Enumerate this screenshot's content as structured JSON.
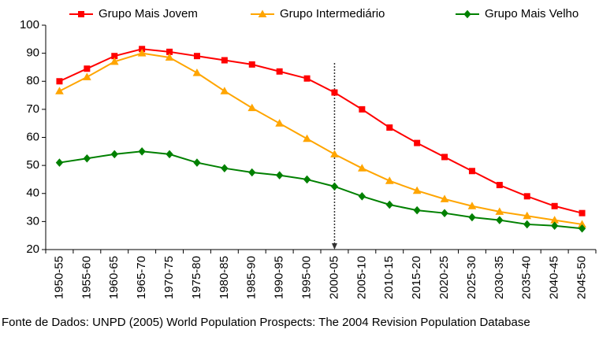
{
  "chart_data": {
    "type": "line",
    "categories": [
      "1950-55",
      "1955-60",
      "1960-65",
      "1965-70",
      "1970-75",
      "1975-80",
      "1980-85",
      "1985-90",
      "1990-95",
      "1995-00",
      "2000-05",
      "2005-10",
      "2010-15",
      "2015-20",
      "2020-25",
      "2025-30",
      "2030-35",
      "2035-40",
      "2040-45",
      "2045-50"
    ],
    "series": [
      {
        "name": "Grupo Mais Jovem",
        "color": "#ff0000",
        "marker": "square",
        "values": [
          80,
          84.5,
          89,
          91.5,
          90.5,
          89,
          87.5,
          86,
          83.5,
          81,
          76,
          70,
          63.5,
          58,
          53,
          48,
          43,
          39,
          35.5,
          33
        ]
      },
      {
        "name": "Grupo Intermediário",
        "color": "#ffa500",
        "marker": "triangle",
        "values": [
          76.5,
          81.5,
          87,
          90,
          88.5,
          83,
          76.5,
          70.5,
          65,
          59.5,
          54,
          49,
          44.5,
          41,
          38,
          35.5,
          33.5,
          32,
          30.5,
          29
        ]
      },
      {
        "name": "Grupo Mais Velho",
        "color": "#008000",
        "marker": "diamond",
        "values": [
          51,
          52.5,
          54,
          55,
          54,
          51,
          49,
          47.5,
          46.5,
          45,
          42.5,
          39,
          36,
          34,
          33,
          31.5,
          30.5,
          29,
          28.5,
          27.5
        ]
      }
    ],
    "ylim": [
      20,
      100
    ],
    "yticks": [
      20,
      30,
      40,
      50,
      60,
      70,
      80,
      90,
      100
    ],
    "grid": false,
    "legend": "top",
    "marker_category": "2000-05",
    "source": "Fonte de Dados: UNPD (2005) World Population Prospects: The 2004 Revision Population Database"
  }
}
